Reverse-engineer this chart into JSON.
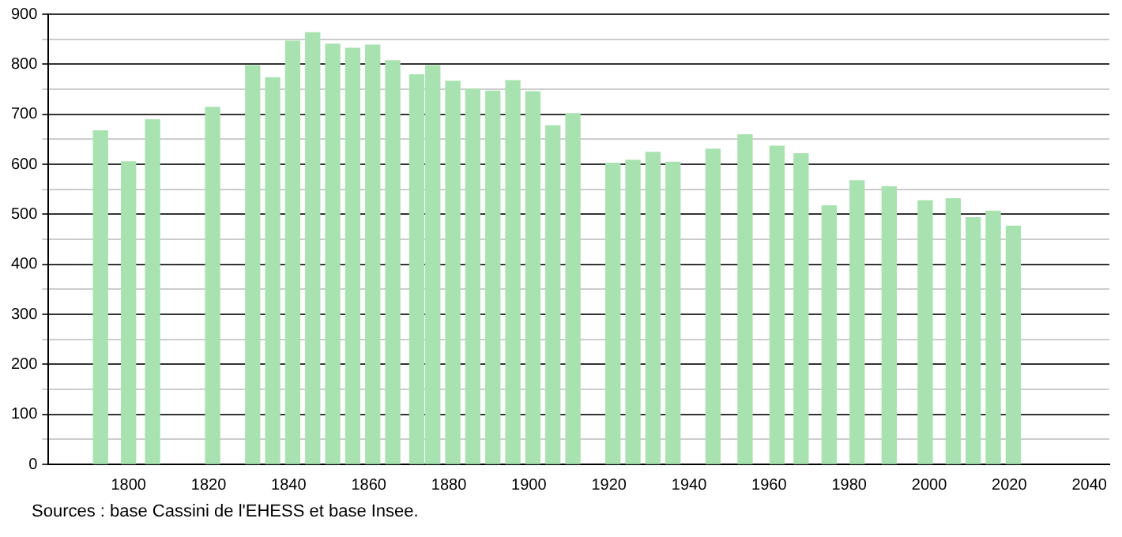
{
  "chart_data": {
    "type": "bar",
    "x": [
      1793,
      1800,
      1806,
      1821,
      1831,
      1836,
      1841,
      1846,
      1851,
      1856,
      1861,
      1866,
      1872,
      1876,
      1881,
      1886,
      1891,
      1896,
      1901,
      1906,
      1911,
      1921,
      1926,
      1931,
      1936,
      1946,
      1954,
      1962,
      1968,
      1975,
      1982,
      1990,
      1999,
      2006,
      2011,
      2016,
      2021
    ],
    "values": [
      667,
      605,
      689,
      714,
      797,
      773,
      846,
      863,
      840,
      832,
      838,
      807,
      779,
      797,
      766,
      750,
      746,
      767,
      745,
      677,
      701,
      602,
      608,
      624,
      604,
      630,
      659,
      636,
      621,
      517,
      567,
      555,
      527,
      531,
      493,
      506,
      476
    ],
    "color": "#a8e2b0",
    "xlim": [
      1780,
      2045
    ],
    "xticks": [
      1800,
      1820,
      1840,
      1860,
      1880,
      1900,
      1920,
      1940,
      1960,
      1980,
      2000,
      2020,
      2040
    ],
    "ylim": [
      0,
      900
    ],
    "yticks": [
      0,
      {
        "value": 50,
        "label": null
      },
      100,
      {
        "value": 150,
        "label": null
      },
      200,
      {
        "value": 250,
        "label": null
      },
      300,
      {
        "value": 350,
        "label": null
      },
      400,
      {
        "value": 450,
        "label": null
      },
      500,
      {
        "value": 550,
        "label": null
      },
      600,
      {
        "value": 650,
        "label": null
      },
      700,
      {
        "value": 750,
        "label": null
      },
      800,
      {
        "value": 850,
        "label": null
      },
      900
    ],
    "grid": "y",
    "legend": false,
    "annotations": [
      "Sources : base Cassini de l'EHESS et base Insee."
    ]
  }
}
